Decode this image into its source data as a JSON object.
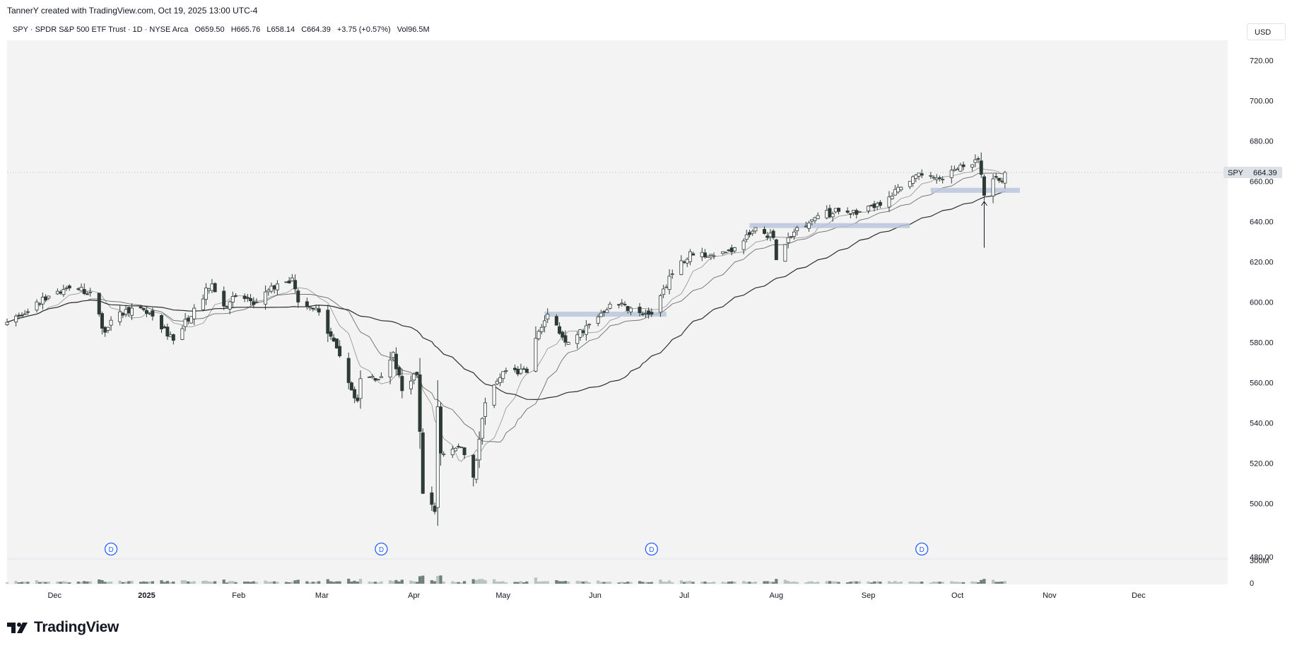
{
  "credit": "TannerY created with TradingView.com, Oct 19, 2025 13:00 UTC-4",
  "legend": {
    "symbol_line": "SPY · SPDR S&P 500 ETF Trust · 1D · NYSE Arca",
    "open": "O659.50",
    "high": "H665.76",
    "low": "L658.14",
    "close": "C664.39",
    "change": "+3.75 (+0.57%)",
    "volume": "Vol96.5M"
  },
  "currency": "USD",
  "logo_text": "TradingView",
  "colors": {
    "plot_bg": "#f3f3f3",
    "up_body": "#ffffff",
    "down_body": "#2e3b35",
    "candle_border": "#2e3b35",
    "ma_fast": "#9a9a9a",
    "ma_mid": "#6b6b6b",
    "ma_slow": "#2d2d2d",
    "zone": "#b9c7db",
    "dividend_marker": "#2962ff"
  },
  "chart_data": {
    "type": "candlestick",
    "symbol": "SPY",
    "last_price_label": {
      "symbol": "SPY",
      "value": "664.39"
    },
    "y_axis": {
      "range": [
        480,
        730
      ],
      "ticks": [
        480,
        500,
        520,
        540,
        560,
        580,
        600,
        620,
        640,
        660,
        680,
        700,
        720
      ],
      "tick_labels": [
        "480.00",
        "500.00",
        "520.00",
        "540.00",
        "560.00",
        "580.00",
        "600.00",
        "620.00",
        "640.00",
        "660.00",
        "680.00",
        "700.00",
        "720.00"
      ]
    },
    "volume_axis": {
      "labels": [
        "300M",
        "0"
      ]
    },
    "x_axis": {
      "start": "2024-11-15",
      "end": "2025-12-31",
      "labels": [
        {
          "date": "2024-12-01",
          "text": "Dec",
          "bold": false
        },
        {
          "date": "2025-01-01",
          "text": "2025",
          "bold": true
        },
        {
          "date": "2025-02-01",
          "text": "Feb",
          "bold": false
        },
        {
          "date": "2025-03-01",
          "text": "Mar",
          "bold": false
        },
        {
          "date": "2025-04-01",
          "text": "Apr",
          "bold": false
        },
        {
          "date": "2025-05-01",
          "text": "May",
          "bold": false
        },
        {
          "date": "2025-06-01",
          "text": "Jun",
          "bold": false
        },
        {
          "date": "2025-07-01",
          "text": "Jul",
          "bold": false
        },
        {
          "date": "2025-08-01",
          "text": "Aug",
          "bold": false
        },
        {
          "date": "2025-09-01",
          "text": "Sep",
          "bold": false
        },
        {
          "date": "2025-10-01",
          "text": "Oct",
          "bold": false
        },
        {
          "date": "2025-11-01",
          "text": "Nov",
          "bold": false
        },
        {
          "date": "2025-12-01",
          "text": "Dec",
          "bold": false
        }
      ]
    },
    "close_anchors": [
      [
        "2024-11-15",
        590
      ],
      [
        "2024-11-22",
        595
      ],
      [
        "2024-11-29",
        603
      ],
      [
        "2024-12-06",
        607
      ],
      [
        "2024-12-13",
        605
      ],
      [
        "2024-12-18",
        585
      ],
      [
        "2024-12-20",
        591
      ],
      [
        "2024-12-27",
        597
      ],
      [
        "2025-01-03",
        593
      ],
      [
        "2025-01-10",
        581
      ],
      [
        "2025-01-17",
        597
      ],
      [
        "2025-01-23",
        609
      ],
      [
        "2025-01-27",
        598
      ],
      [
        "2025-01-31",
        603
      ],
      [
        "2025-02-07",
        600
      ],
      [
        "2025-02-14",
        609
      ],
      [
        "2025-02-19",
        612
      ],
      [
        "2025-02-21",
        600
      ],
      [
        "2025-02-28",
        595
      ],
      [
        "2025-03-04",
        583
      ],
      [
        "2025-03-10",
        560
      ],
      [
        "2025-03-13",
        551
      ],
      [
        "2025-03-14",
        562
      ],
      [
        "2025-03-21",
        563
      ],
      [
        "2025-03-25",
        575
      ],
      [
        "2025-03-28",
        556
      ],
      [
        "2025-04-02",
        564
      ],
      [
        "2025-04-04",
        505
      ],
      [
        "2025-04-08",
        496
      ],
      [
        "2025-04-09",
        548
      ],
      [
        "2025-04-10",
        525
      ],
      [
        "2025-04-17",
        528
      ],
      [
        "2025-04-21",
        513
      ],
      [
        "2025-04-25",
        550
      ],
      [
        "2025-05-02",
        566
      ],
      [
        "2025-05-09",
        565
      ],
      [
        "2025-05-12",
        582
      ],
      [
        "2025-05-16",
        594
      ],
      [
        "2025-05-23",
        580
      ],
      [
        "2025-05-30",
        589
      ],
      [
        "2025-06-06",
        599
      ],
      [
        "2025-06-13",
        597
      ],
      [
        "2025-06-20",
        594
      ],
      [
        "2025-06-27",
        614
      ],
      [
        "2025-07-03",
        625
      ],
      [
        "2025-07-11",
        623
      ],
      [
        "2025-07-18",
        627
      ],
      [
        "2025-07-25",
        637
      ],
      [
        "2025-07-31",
        632
      ],
      [
        "2025-08-01",
        621
      ],
      [
        "2025-08-08",
        637
      ],
      [
        "2025-08-15",
        643
      ],
      [
        "2025-08-22",
        645
      ],
      [
        "2025-08-29",
        645
      ],
      [
        "2025-09-05",
        648
      ],
      [
        "2025-09-12",
        657
      ],
      [
        "2025-09-19",
        663
      ],
      [
        "2025-09-26",
        661
      ],
      [
        "2025-10-02",
        668
      ],
      [
        "2025-10-08",
        671
      ],
      [
        "2025-10-10",
        653
      ],
      [
        "2025-10-14",
        662
      ],
      [
        "2025-10-16",
        660
      ],
      [
        "2025-10-17",
        664.39
      ]
    ],
    "moving_averages": [
      {
        "period": 10,
        "color_key": "ma_fast"
      },
      {
        "period": 20,
        "color_key": "ma_mid"
      },
      {
        "period": 50,
        "color_key": "ma_slow"
      }
    ],
    "zones": [
      {
        "from": "2025-05-15",
        "to": "2025-06-25",
        "price": 594
      },
      {
        "from": "2025-07-23",
        "to": "2025-09-15",
        "price": 638
      },
      {
        "from": "2025-09-22",
        "to": "2025-10-22",
        "price": 655.5
      }
    ],
    "arrow": {
      "date": "2025-10-10",
      "from_price": 627,
      "to_price": 650
    },
    "dividend_markers": {
      "label": "D",
      "dates": [
        "2024-12-20",
        "2025-03-21",
        "2025-06-20",
        "2025-09-19"
      ]
    }
  }
}
